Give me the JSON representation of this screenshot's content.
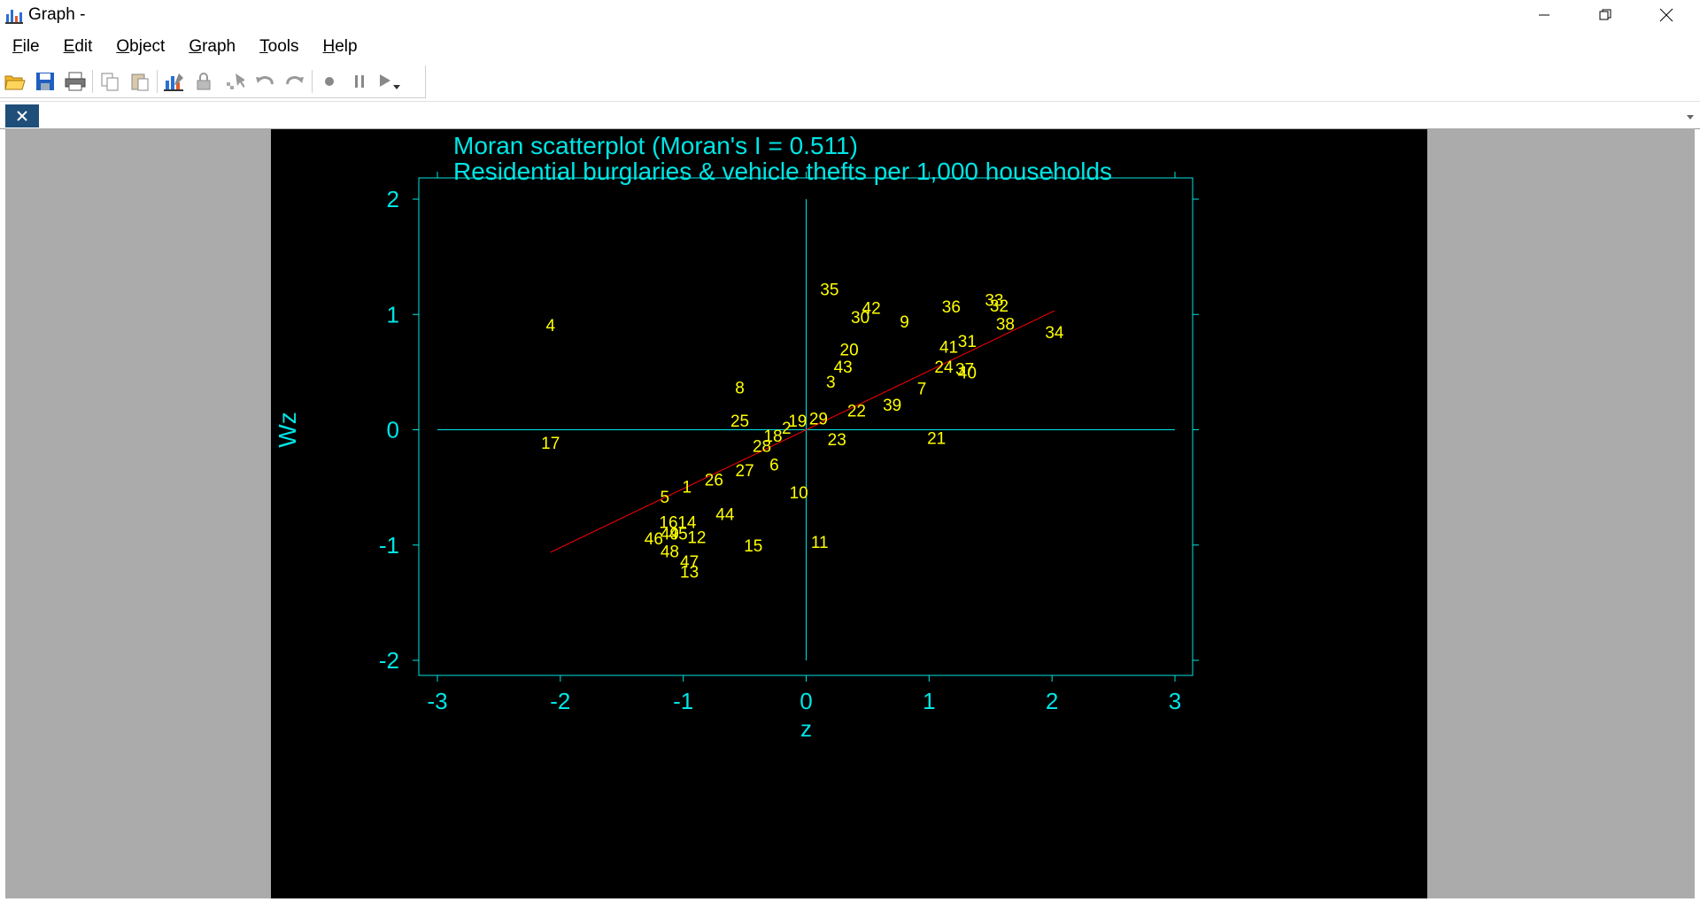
{
  "window": {
    "title": "Graph -"
  },
  "menu": [
    {
      "label": "File",
      "key": "F"
    },
    {
      "label": "Edit",
      "key": "E"
    },
    {
      "label": "Object",
      "key": "O"
    },
    {
      "label": "Graph",
      "key": "G"
    },
    {
      "label": "Tools",
      "key": "T"
    },
    {
      "label": "Help",
      "key": "H"
    }
  ],
  "toolbar": {
    "icons": [
      "open-icon",
      "save-icon",
      "print-icon",
      "copy-icon",
      "paste-icon",
      "graph-editor-icon",
      "lock-icon",
      "select-icon",
      "undo-icon",
      "redo-icon",
      "record-icon",
      "pause-icon",
      "play-icon"
    ]
  },
  "colors": {
    "plot_background": "#000000",
    "axis": "#00e5e5",
    "labels": "#ffff00",
    "fit_line": "#ff0000",
    "frame": "#ababab"
  },
  "chart_data": {
    "type": "scatter",
    "title": "Moran scatterplot (Moran's I = 0.511)",
    "subtitle": "Residential burglaries & vehicle thefts per 1,000 households",
    "xlabel": "z",
    "ylabel": "Wz",
    "xlim": [
      -3,
      3
    ],
    "ylim": [
      -2,
      2
    ],
    "xticks": [
      "-3",
      "-2",
      "-1",
      "0",
      "1",
      "2",
      "3"
    ],
    "yticks": [
      "-2",
      "-1",
      "0",
      "1",
      "2"
    ],
    "marker": "labels",
    "fit_line": {
      "slope": 0.511,
      "x": [
        -2.08,
        2.02
      ]
    },
    "points": [
      {
        "label": "1",
        "x": -0.97,
        "y": -0.49
      },
      {
        "label": "2",
        "x": -0.16,
        "y": 0.02
      },
      {
        "label": "3",
        "x": 0.2,
        "y": 0.42
      },
      {
        "label": "4",
        "x": -2.08,
        "y": 0.91
      },
      {
        "label": "5",
        "x": -1.15,
        "y": -0.58
      },
      {
        "label": "6",
        "x": -0.26,
        "y": -0.3
      },
      {
        "label": "7",
        "x": 0.94,
        "y": 0.36
      },
      {
        "label": "8",
        "x": -0.54,
        "y": 0.37
      },
      {
        "label": "9",
        "x": 0.8,
        "y": 0.94
      },
      {
        "label": "10",
        "x": -0.06,
        "y": -0.54
      },
      {
        "label": "11",
        "x": 0.11,
        "y": -0.97
      },
      {
        "label": "12",
        "x": -0.89,
        "y": -0.93
      },
      {
        "label": "13",
        "x": -0.95,
        "y": -1.23
      },
      {
        "label": "14",
        "x": -0.97,
        "y": -0.8
      },
      {
        "label": "15",
        "x": -0.43,
        "y": -1.0
      },
      {
        "label": "16",
        "x": -1.12,
        "y": -0.8
      },
      {
        "label": "17",
        "x": -2.08,
        "y": -0.11
      },
      {
        "label": "18",
        "x": -0.27,
        "y": -0.05
      },
      {
        "label": "19",
        "x": -0.07,
        "y": 0.08
      },
      {
        "label": "20",
        "x": 0.35,
        "y": 0.7
      },
      {
        "label": "21",
        "x": 1.06,
        "y": -0.07
      },
      {
        "label": "22",
        "x": 0.41,
        "y": 0.17
      },
      {
        "label": "23",
        "x": 0.25,
        "y": -0.08
      },
      {
        "label": "24",
        "x": 1.12,
        "y": 0.55
      },
      {
        "label": "25",
        "x": -0.54,
        "y": 0.08
      },
      {
        "label": "26",
        "x": -0.75,
        "y": -0.43
      },
      {
        "label": "27",
        "x": -0.5,
        "y": -0.35
      },
      {
        "label": "28",
        "x": -0.36,
        "y": -0.14
      },
      {
        "label": "29",
        "x": 0.1,
        "y": 0.1
      },
      {
        "label": "30",
        "x": 0.44,
        "y": 0.98
      },
      {
        "label": "31",
        "x": 1.31,
        "y": 0.77
      },
      {
        "label": "32",
        "x": 1.57,
        "y": 1.08
      },
      {
        "label": "33",
        "x": 1.53,
        "y": 1.13
      },
      {
        "label": "34",
        "x": 2.02,
        "y": 0.85
      },
      {
        "label": "35",
        "x": 0.19,
        "y": 1.22
      },
      {
        "label": "36",
        "x": 1.18,
        "y": 1.07
      },
      {
        "label": "37",
        "x": 1.29,
        "y": 0.53
      },
      {
        "label": "38",
        "x": 1.62,
        "y": 0.92
      },
      {
        "label": "39",
        "x": 0.7,
        "y": 0.22
      },
      {
        "label": "40",
        "x": 1.31,
        "y": 0.5
      },
      {
        "label": "41",
        "x": 1.16,
        "y": 0.72
      },
      {
        "label": "42",
        "x": 0.53,
        "y": 1.06
      },
      {
        "label": "43",
        "x": 0.3,
        "y": 0.55
      },
      {
        "label": "44",
        "x": -0.66,
        "y": -0.73
      },
      {
        "label": "45",
        "x": -1.04,
        "y": -0.9
      },
      {
        "label": "46",
        "x": -1.24,
        "y": -0.94
      },
      {
        "label": "47",
        "x": -0.95,
        "y": -1.14
      },
      {
        "label": "48",
        "x": -1.11,
        "y": -1.05
      },
      {
        "label": "49",
        "x": -1.11,
        "y": -0.9
      }
    ]
  }
}
